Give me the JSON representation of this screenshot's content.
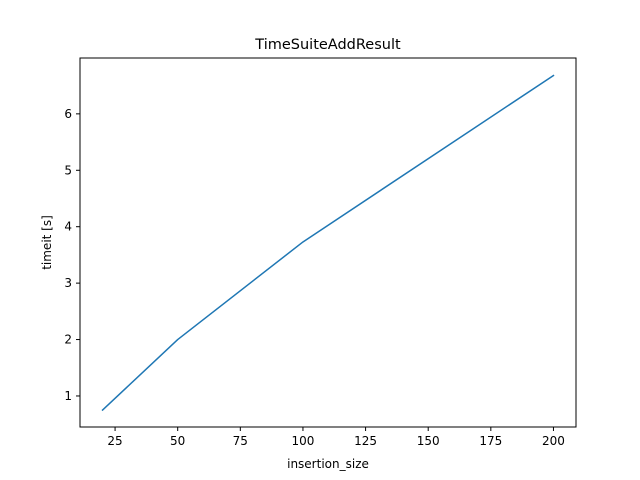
{
  "chart_data": {
    "type": "line",
    "title": "TimeSuiteAddResult",
    "xlabel": "insertion_size",
    "ylabel": "timeit [s]",
    "xlim": [
      11,
      209
    ],
    "ylim": [
      0.45,
      6.99
    ],
    "xticks": [
      25,
      50,
      75,
      100,
      125,
      150,
      175,
      200
    ],
    "xtick_labels": [
      "25",
      "50",
      "75",
      "100",
      "125",
      "150",
      "175",
      "200"
    ],
    "yticks": [
      1,
      2,
      3,
      4,
      5,
      6
    ],
    "ytick_labels": [
      "1",
      "2",
      "3",
      "4",
      "5",
      "6"
    ],
    "grid": false,
    "series": [
      {
        "name": "TimeSuiteAddResult",
        "color": "#1f77b4",
        "x": [
          20,
          50,
          100,
          200
        ],
        "y": [
          0.75,
          2.0,
          3.73,
          6.68
        ]
      }
    ]
  }
}
